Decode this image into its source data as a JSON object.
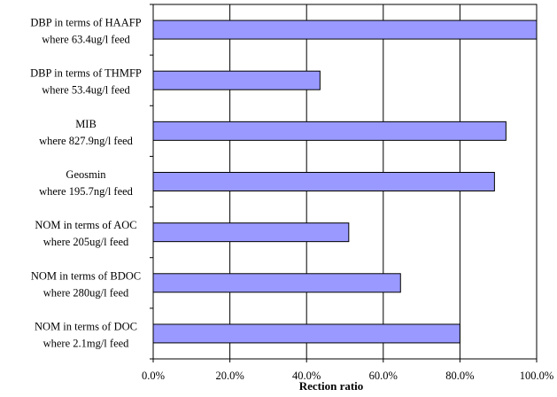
{
  "chart_data": {
    "type": "bar",
    "orientation": "horizontal",
    "title": "",
    "xlabel": "Rection ratio",
    "ylabel": "",
    "xlim": [
      0,
      1
    ],
    "x_ticks": [
      "0.0%",
      "20.0%",
      "40.0%",
      "60.0%",
      "80.0%",
      "100.0%"
    ],
    "grid": "vertical",
    "legend": "none",
    "bar_color": "#9999ff",
    "categories": [
      {
        "line1": "DBP in terms of HAAFP",
        "line2": "where 63.4ug/l feed"
      },
      {
        "line1": "DBP in terms of THMFP",
        "line2": "where 53.4ug/l feed"
      },
      {
        "line1": "MIB",
        "line2": "where 827.9ng/l feed"
      },
      {
        "line1": "Geosmin",
        "line2": "where 195.7ng/l feed"
      },
      {
        "line1": "NOM in terms of AOC",
        "line2": "where 205ug/l feed"
      },
      {
        "line1": "NOM in terms of BDOC",
        "line2": "where 280ug/l feed"
      },
      {
        "line1": "NOM in terms of DOC",
        "line2": "where 2.1mg/l feed"
      }
    ],
    "values": [
      1.0,
      0.435,
      0.92,
      0.89,
      0.51,
      0.645,
      0.8
    ]
  }
}
